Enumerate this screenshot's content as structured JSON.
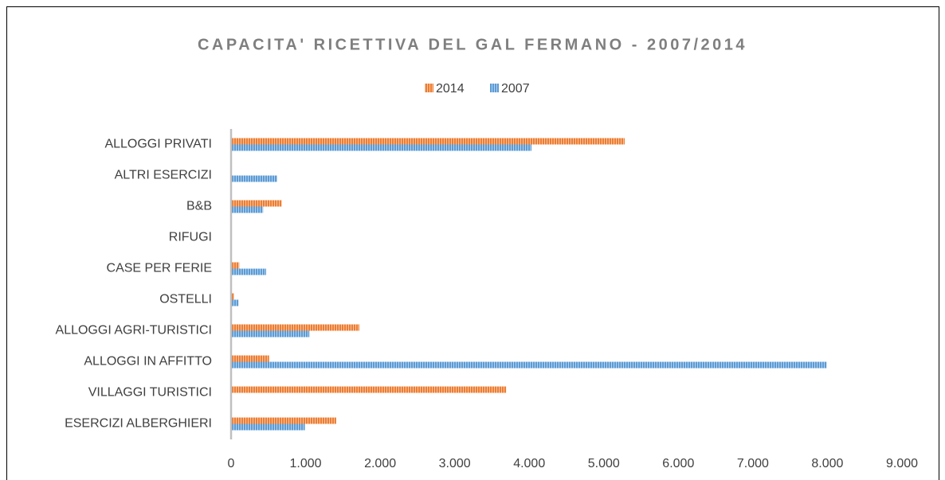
{
  "chart_data": {
    "type": "bar",
    "orientation": "horizontal",
    "title": "CAPACITA' RICETTIVA DEL GAL FERMANO - 2007/2014",
    "categories": [
      "ALLOGGI PRIVATI",
      "ALTRI ESERCIZI",
      "B&B",
      "RIFUGI",
      "CASE PER FERIE",
      "OSTELLI",
      "ALLOGGI AGRI-TURISTICI",
      "ALLOGGI IN AFFITTO",
      "VILLAGGI TURISTICI",
      "ESERCIZI ALBERGHIERI"
    ],
    "series": [
      {
        "name": "2014",
        "color": "#ed7d31",
        "values": [
          5280,
          0,
          680,
          0,
          110,
          40,
          1720,
          510,
          3690,
          1410
        ]
      },
      {
        "name": "2007",
        "color": "#5b9bd5",
        "values": [
          4030,
          620,
          430,
          0,
          470,
          100,
          1050,
          7990,
          0,
          990
        ]
      }
    ],
    "xlim": [
      0,
      9000
    ],
    "xticks": [
      0,
      {
        "value": 1000,
        "label": "1.000"
      },
      {
        "value": 2000,
        "label": "2.000"
      },
      {
        "value": 3000,
        "label": "3.000"
      },
      {
        "value": 4000,
        "label": "4.000"
      },
      {
        "value": 5000,
        "label": "5.000"
      },
      {
        "value": 6000,
        "label": "6.000"
      },
      {
        "value": 7000,
        "label": "7.000"
      },
      {
        "value": 8000,
        "label": "8.000"
      },
      {
        "value": 9000,
        "label": "9.000"
      }
    ],
    "legend": "top",
    "grid": false
  }
}
